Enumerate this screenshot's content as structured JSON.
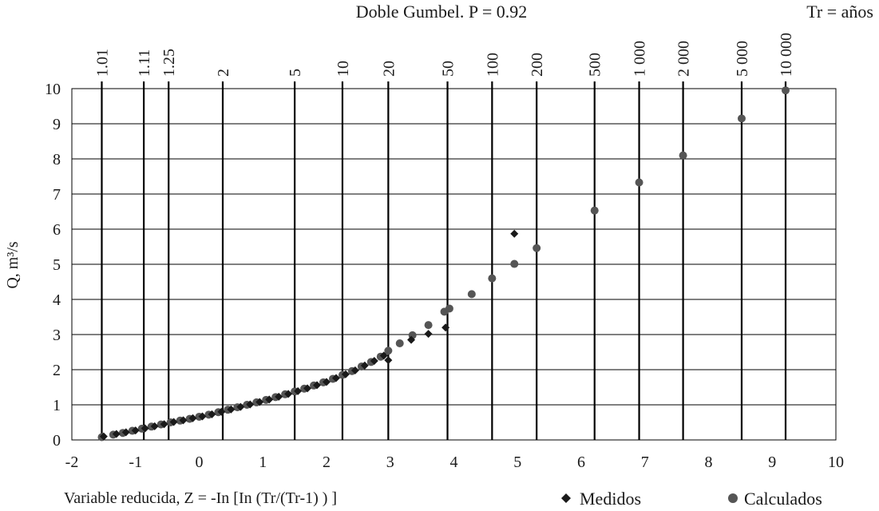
{
  "chart_data": {
    "type": "scatter",
    "title": "Doble Gumbel. P = 0.92",
    "corner_label": "Tr = años",
    "xlabel": "Variable reducida, Z = -In [In (Tr/(Tr-1) ) ]",
    "ylabel": "Q, m³/s",
    "xlim": [
      -2,
      10
    ],
    "ylim": [
      0,
      10
    ],
    "x_ticks": [
      "-2",
      "-1",
      "0",
      "1",
      "2",
      "3",
      "4",
      "5",
      "6",
      "7",
      "8",
      "9",
      "10"
    ],
    "y_ticks": [
      "0",
      "1",
      "2",
      "3",
      "4",
      "5",
      "6",
      "7",
      "8",
      "9",
      "10"
    ],
    "grid": true,
    "legend_position": "bottom-right",
    "return_period_axis": [
      {
        "label": "1.01",
        "z": -1.53
      },
      {
        "label": "1.11",
        "z": -0.87
      },
      {
        "label": "1.25",
        "z": -0.48
      },
      {
        "label": "2",
        "z": 0.37
      },
      {
        "label": "5",
        "z": 1.5
      },
      {
        "label": "10",
        "z": 2.25
      },
      {
        "label": "20",
        "z": 2.97
      },
      {
        "label": "50",
        "z": 3.9
      },
      {
        "label": "100",
        "z": 4.6
      },
      {
        "label": "200",
        "z": 5.3
      },
      {
        "label": "500",
        "z": 6.21
      },
      {
        "label": "1 000",
        "z": 6.91
      },
      {
        "label": "2 000",
        "z": 7.6
      },
      {
        "label": "5 000",
        "z": 8.52
      },
      {
        "label": "10 000",
        "z": 9.21
      }
    ],
    "series": [
      {
        "name": "Medidos",
        "marker": "diamond",
        "color": "#1a1a1a",
        "x": [
          -1.5,
          -1.3,
          -1.15,
          -1.0,
          -0.85,
          -0.7,
          -0.55,
          -0.4,
          -0.25,
          -0.1,
          0.05,
          0.2,
          0.35,
          0.5,
          0.65,
          0.8,
          0.95,
          1.1,
          1.25,
          1.4,
          1.55,
          1.7,
          1.85,
          2.0,
          2.15,
          2.3,
          2.45,
          2.6,
          2.75,
          2.9,
          2.97,
          3.33,
          3.6,
          3.87,
          4.95
        ],
        "y": [
          0.1,
          0.17,
          0.22,
          0.27,
          0.33,
          0.39,
          0.45,
          0.51,
          0.56,
          0.62,
          0.67,
          0.73,
          0.8,
          0.87,
          0.94,
          1.01,
          1.08,
          1.15,
          1.23,
          1.31,
          1.39,
          1.47,
          1.56,
          1.65,
          1.76,
          1.87,
          1.98,
          2.12,
          2.25,
          2.4,
          2.27,
          2.85,
          3.02,
          3.2,
          5.87
        ]
      },
      {
        "name": "Calculados",
        "marker": "circle",
        "color": "#555555",
        "x": [
          -1.53,
          -1.35,
          -1.2,
          -1.05,
          -0.9,
          -0.75,
          -0.6,
          -0.45,
          -0.3,
          -0.15,
          0.0,
          0.15,
          0.3,
          0.45,
          0.6,
          0.75,
          0.9,
          1.05,
          1.2,
          1.35,
          1.5,
          1.65,
          1.8,
          1.95,
          2.1,
          2.25,
          2.4,
          2.55,
          2.7,
          2.85,
          2.97,
          3.15,
          3.35,
          3.6,
          3.85,
          3.93,
          4.28,
          4.6,
          4.95,
          5.3,
          6.21,
          6.91,
          7.6,
          8.52,
          9.21
        ],
        "y": [
          0.08,
          0.15,
          0.2,
          0.26,
          0.32,
          0.38,
          0.44,
          0.5,
          0.55,
          0.6,
          0.66,
          0.72,
          0.79,
          0.86,
          0.93,
          1.0,
          1.07,
          1.14,
          1.22,
          1.3,
          1.38,
          1.46,
          1.55,
          1.64,
          1.74,
          1.85,
          1.96,
          2.09,
          2.22,
          2.37,
          2.54,
          2.75,
          2.98,
          3.27,
          3.65,
          3.74,
          4.15,
          4.6,
          5.01,
          5.46,
          6.53,
          7.33,
          8.1,
          9.15,
          9.95
        ]
      }
    ]
  }
}
